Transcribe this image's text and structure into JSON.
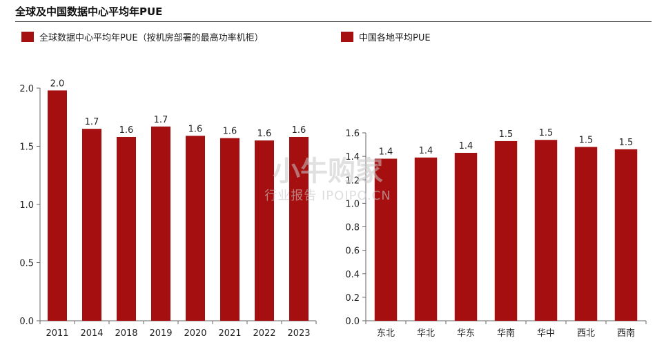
{
  "title": "全球及中国数据中心平均年PUE",
  "colors": {
    "bar": "#A50F0F",
    "axis": "#666666"
  },
  "legend": [
    {
      "label": "全球数据中心平均年PUE（按机房部署的最高功率机柜）",
      "color": "#A50F0F"
    },
    {
      "label": "中国各地平均PUE",
      "color": "#A50F0F"
    }
  ],
  "watermark": {
    "main": "小牛购家",
    "sub": "行业报告 IPOIPO.CN"
  },
  "chart_data": [
    {
      "type": "bar",
      "series": [
        {
          "name": "全球数据中心平均年PUE（按机房部署的最高功率机柜）",
          "values": [
            1.98,
            1.65,
            1.58,
            1.67,
            1.59,
            1.57,
            1.55,
            1.58
          ]
        }
      ],
      "categories": [
        "2011",
        "2014",
        "2018",
        "2019",
        "2020",
        "2021",
        "2022",
        "2023"
      ],
      "data_labels": [
        "2.0",
        "1.7",
        "1.6",
        "1.7",
        "1.6",
        "1.6",
        "1.6",
        "1.6"
      ],
      "ylim": [
        0,
        2.0
      ],
      "yticks": [
        "0.0",
        "0.5",
        "1.0",
        "1.5",
        "2.0"
      ],
      "ytick_values": [
        0,
        0.5,
        1.0,
        1.5,
        2.0
      ],
      "grid": false
    },
    {
      "type": "bar",
      "series": [
        {
          "name": "中国各地平均PUE",
          "values": [
            1.38,
            1.39,
            1.43,
            1.53,
            1.54,
            1.48,
            1.46
          ]
        }
      ],
      "categories": [
        "东北",
        "华北",
        "华东",
        "华南",
        "华中",
        "西北",
        "西南"
      ],
      "data_labels": [
        "1.4",
        "1.4",
        "1.4",
        "1.5",
        "1.5",
        "1.5",
        "1.5"
      ],
      "ylim": [
        0,
        1.6
      ],
      "yticks": [
        "0.0",
        "0.2",
        "0.4",
        "0.6",
        "0.8",
        "1.0",
        "1.2",
        "1.4",
        "1.6"
      ],
      "ytick_values": [
        0,
        0.2,
        0.4,
        0.6,
        0.8,
        1.0,
        1.2,
        1.4,
        1.6
      ],
      "grid": false
    }
  ]
}
